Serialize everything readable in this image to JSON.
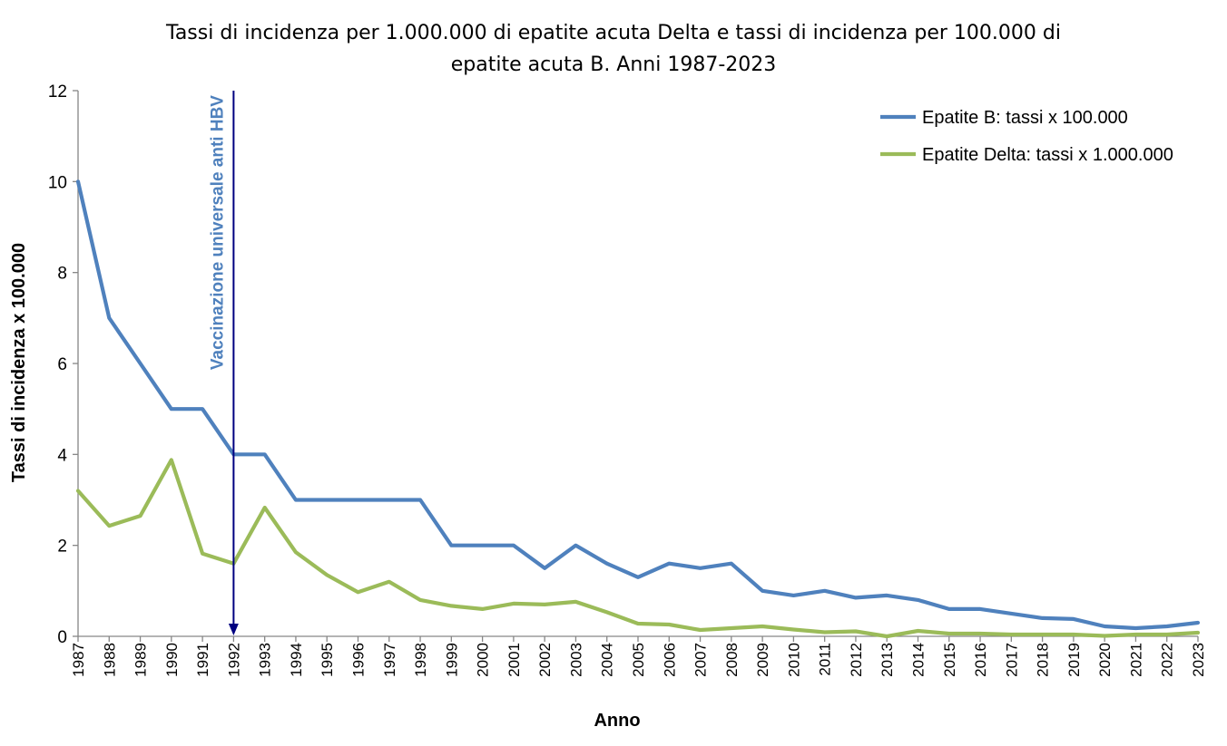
{
  "chart_data": {
    "type": "line",
    "title_line1": "Tassi di incidenza per 1.000.000 di epatite acuta Delta e tassi di incidenza per 100.000 di",
    "title_line2": "epatite acuta B. Anni 1987-2023",
    "xlabel": "Anno",
    "ylabel": "Tassi di incidenza x 100.000",
    "ylim": [
      0,
      12
    ],
    "yticks": [
      "0",
      "2",
      "4",
      "6",
      "8",
      "10",
      "12"
    ],
    "grid": false,
    "legend_position": "top-right",
    "categories": [
      "1987",
      "1988",
      "1989",
      "1990",
      "1991",
      "1992",
      "1993",
      "1994",
      "1995",
      "1996",
      "1997",
      "1998",
      "1999",
      "2000",
      "2001",
      "2002",
      "2003",
      "2004",
      "2005",
      "2006",
      "2007",
      "2008",
      "2009",
      "2010",
      "2011",
      "2012",
      "2013",
      "2014",
      "2015",
      "2016",
      "2017",
      "2018",
      "2019",
      "2020",
      "2021",
      "2022",
      "2023"
    ],
    "series": [
      {
        "name": "Epatite B: tassi x 100.000",
        "color": "#4f81bd",
        "values": [
          10,
          7,
          6,
          5,
          5,
          4,
          4,
          3,
          3,
          3,
          3,
          3,
          2,
          2,
          2,
          1.5,
          2,
          1.6,
          1.3,
          1.6,
          1.5,
          1.6,
          1,
          0.9,
          1,
          0.85,
          0.9,
          0.8,
          0.6,
          0.6,
          0.5,
          0.4,
          0.38,
          0.22,
          0.18,
          0.22,
          0.3
        ]
      },
      {
        "name": "Epatite Delta: tassi x 1.000.000",
        "color": "#9bbb59",
        "values": [
          3.2,
          2.43,
          2.65,
          3.88,
          1.82,
          1.6,
          2.83,
          1.85,
          1.35,
          0.97,
          1.2,
          0.8,
          0.67,
          0.6,
          0.72,
          0.7,
          0.76,
          0.53,
          0.28,
          0.26,
          0.14,
          0.18,
          0.22,
          0.15,
          0.09,
          0.11,
          0,
          0.12,
          0.06,
          0.06,
          0.04,
          0.04,
          0.04,
          0.01,
          0.04,
          0.04,
          0.08
        ]
      }
    ],
    "annotation": {
      "text": "Vaccinazione universale anti HBV",
      "at": "1992",
      "color": "#4f81bd",
      "arrow_color": "#000080"
    }
  }
}
